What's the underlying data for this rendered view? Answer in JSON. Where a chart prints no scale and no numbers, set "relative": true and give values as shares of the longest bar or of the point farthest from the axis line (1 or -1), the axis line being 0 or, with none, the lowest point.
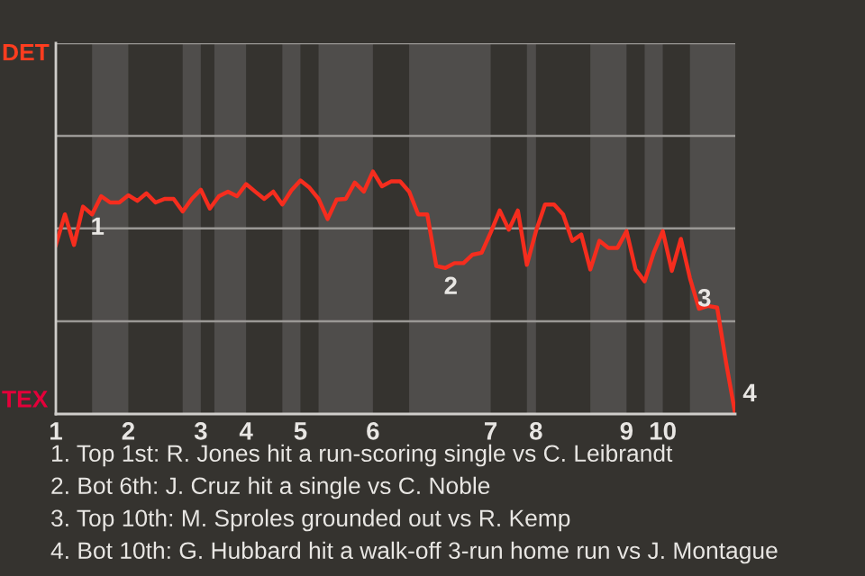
{
  "chart_data": {
    "type": "line",
    "relative": true,
    "categories": [
      "1",
      null,
      null,
      null,
      null,
      null,
      null,
      null,
      "2",
      null,
      null,
      null,
      null,
      null,
      null,
      null,
      "3",
      null,
      null,
      null,
      null,
      "4",
      null,
      null,
      null,
      null,
      null,
      "5",
      null,
      null,
      null,
      null,
      null,
      null,
      null,
      "6",
      null,
      null,
      null,
      null,
      null,
      null,
      null,
      null,
      null,
      null,
      null,
      null,
      "7",
      null,
      null,
      null,
      null,
      "8",
      null,
      null,
      null,
      null,
      null,
      null,
      null,
      null,
      null,
      "9",
      null,
      null,
      null,
      "10",
      null,
      null,
      null,
      null,
      null,
      null,
      null,
      null
    ],
    "series": [
      {
        "color": "#f52d1e",
        "values": [
          0.697,
          0.823,
          0.697,
          0.855,
          0.823,
          0.898,
          0.872,
          0.872,
          0.902,
          0.879,
          0.91,
          0.872,
          0.887,
          0.887,
          0.835,
          0.887,
          0.925,
          0.847,
          0.898,
          0.917,
          0.898,
          0.948,
          0.917,
          0.887,
          0.917,
          0.864,
          0.922,
          0.963,
          0.933,
          0.887,
          0.804,
          0.884,
          0.887,
          0.954,
          0.917,
          1,
          0.939,
          0.959,
          0.959,
          0.917,
          0.823,
          0.823,
          0.61,
          0.602,
          0.622,
          0.622,
          0.657,
          0.665,
          0.748,
          0.839,
          0.76,
          0.839,
          0.615,
          0.754,
          0.864,
          0.864,
          0.823,
          0.714,
          0.74,
          0.596,
          0.714,
          0.685,
          0.685,
          0.754,
          0.596,
          0.547,
          0.665,
          0.754,
          0.59,
          0.722,
          0.56,
          0.434,
          0.446,
          0.439,
          0.209,
          0
        ]
      }
    ],
    "marker": "none",
    "line_style": "solid",
    "ref_lines": [
      {
        "axis": "y",
        "value": 0.382,
        "color": "#9a9895"
      },
      {
        "axis": "y",
        "value": 0.765,
        "color": "#9a9895"
      },
      {
        "axis": "y",
        "value": 1.147,
        "color": "#9a9895"
      },
      {
        "axis": "y",
        "value": 1.529,
        "color": "#9a9895"
      }
    ],
    "annotations": [
      "DET",
      "TEX",
      "1",
      "2",
      "3",
      "4",
      "1. Top 1st: R. Jones hit a run-scoring single vs C. Leibrandt",
      "2. Bot 6th: J. Cruz hit a single vs C. Noble",
      "3. Top 10th: M. Sproles grounded out vs R. Kemp",
      "4. Bot 10th: G. Hubbard hit a walk-off 3-run home run vs J. Montague"
    ]
  }
}
